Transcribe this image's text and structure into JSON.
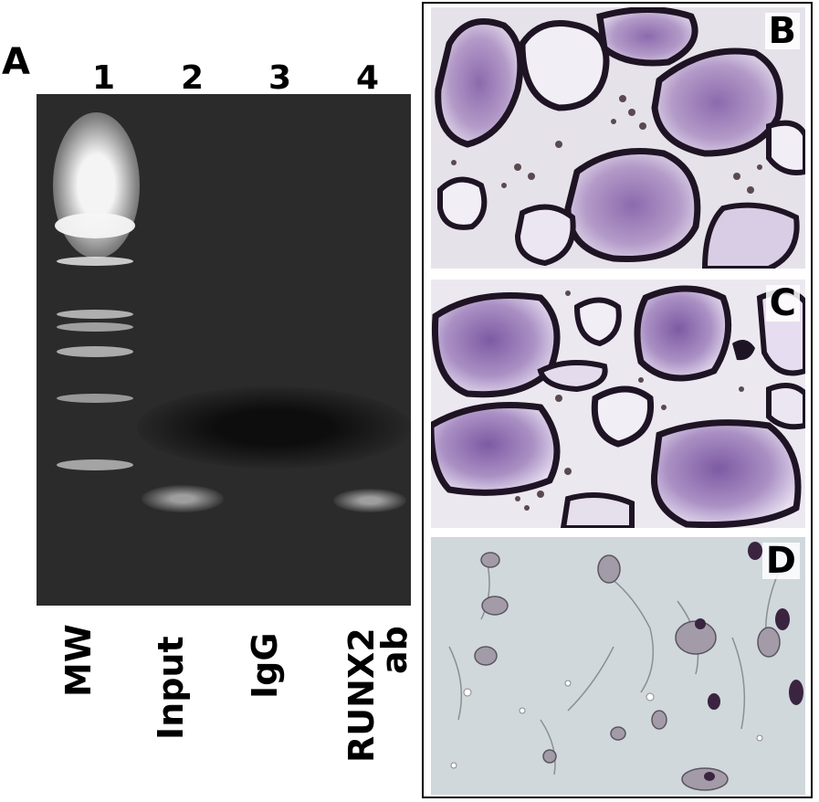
{
  "panel_a": {
    "letter": "A",
    "lane_numbers": [
      "1",
      "2",
      "3",
      "4"
    ],
    "lane_labels": [
      "MW",
      "Input",
      "IgG",
      "RUNX2",
      "ab"
    ]
  },
  "panels": {
    "b_letter": "B",
    "c_letter": "C",
    "d_letter": "D"
  },
  "colors": {
    "gel_background": "#2b2b2b",
    "band": "#e8e8e8",
    "stain_purple": "#6a3d8a",
    "cell_outline": "#1e1424"
  }
}
